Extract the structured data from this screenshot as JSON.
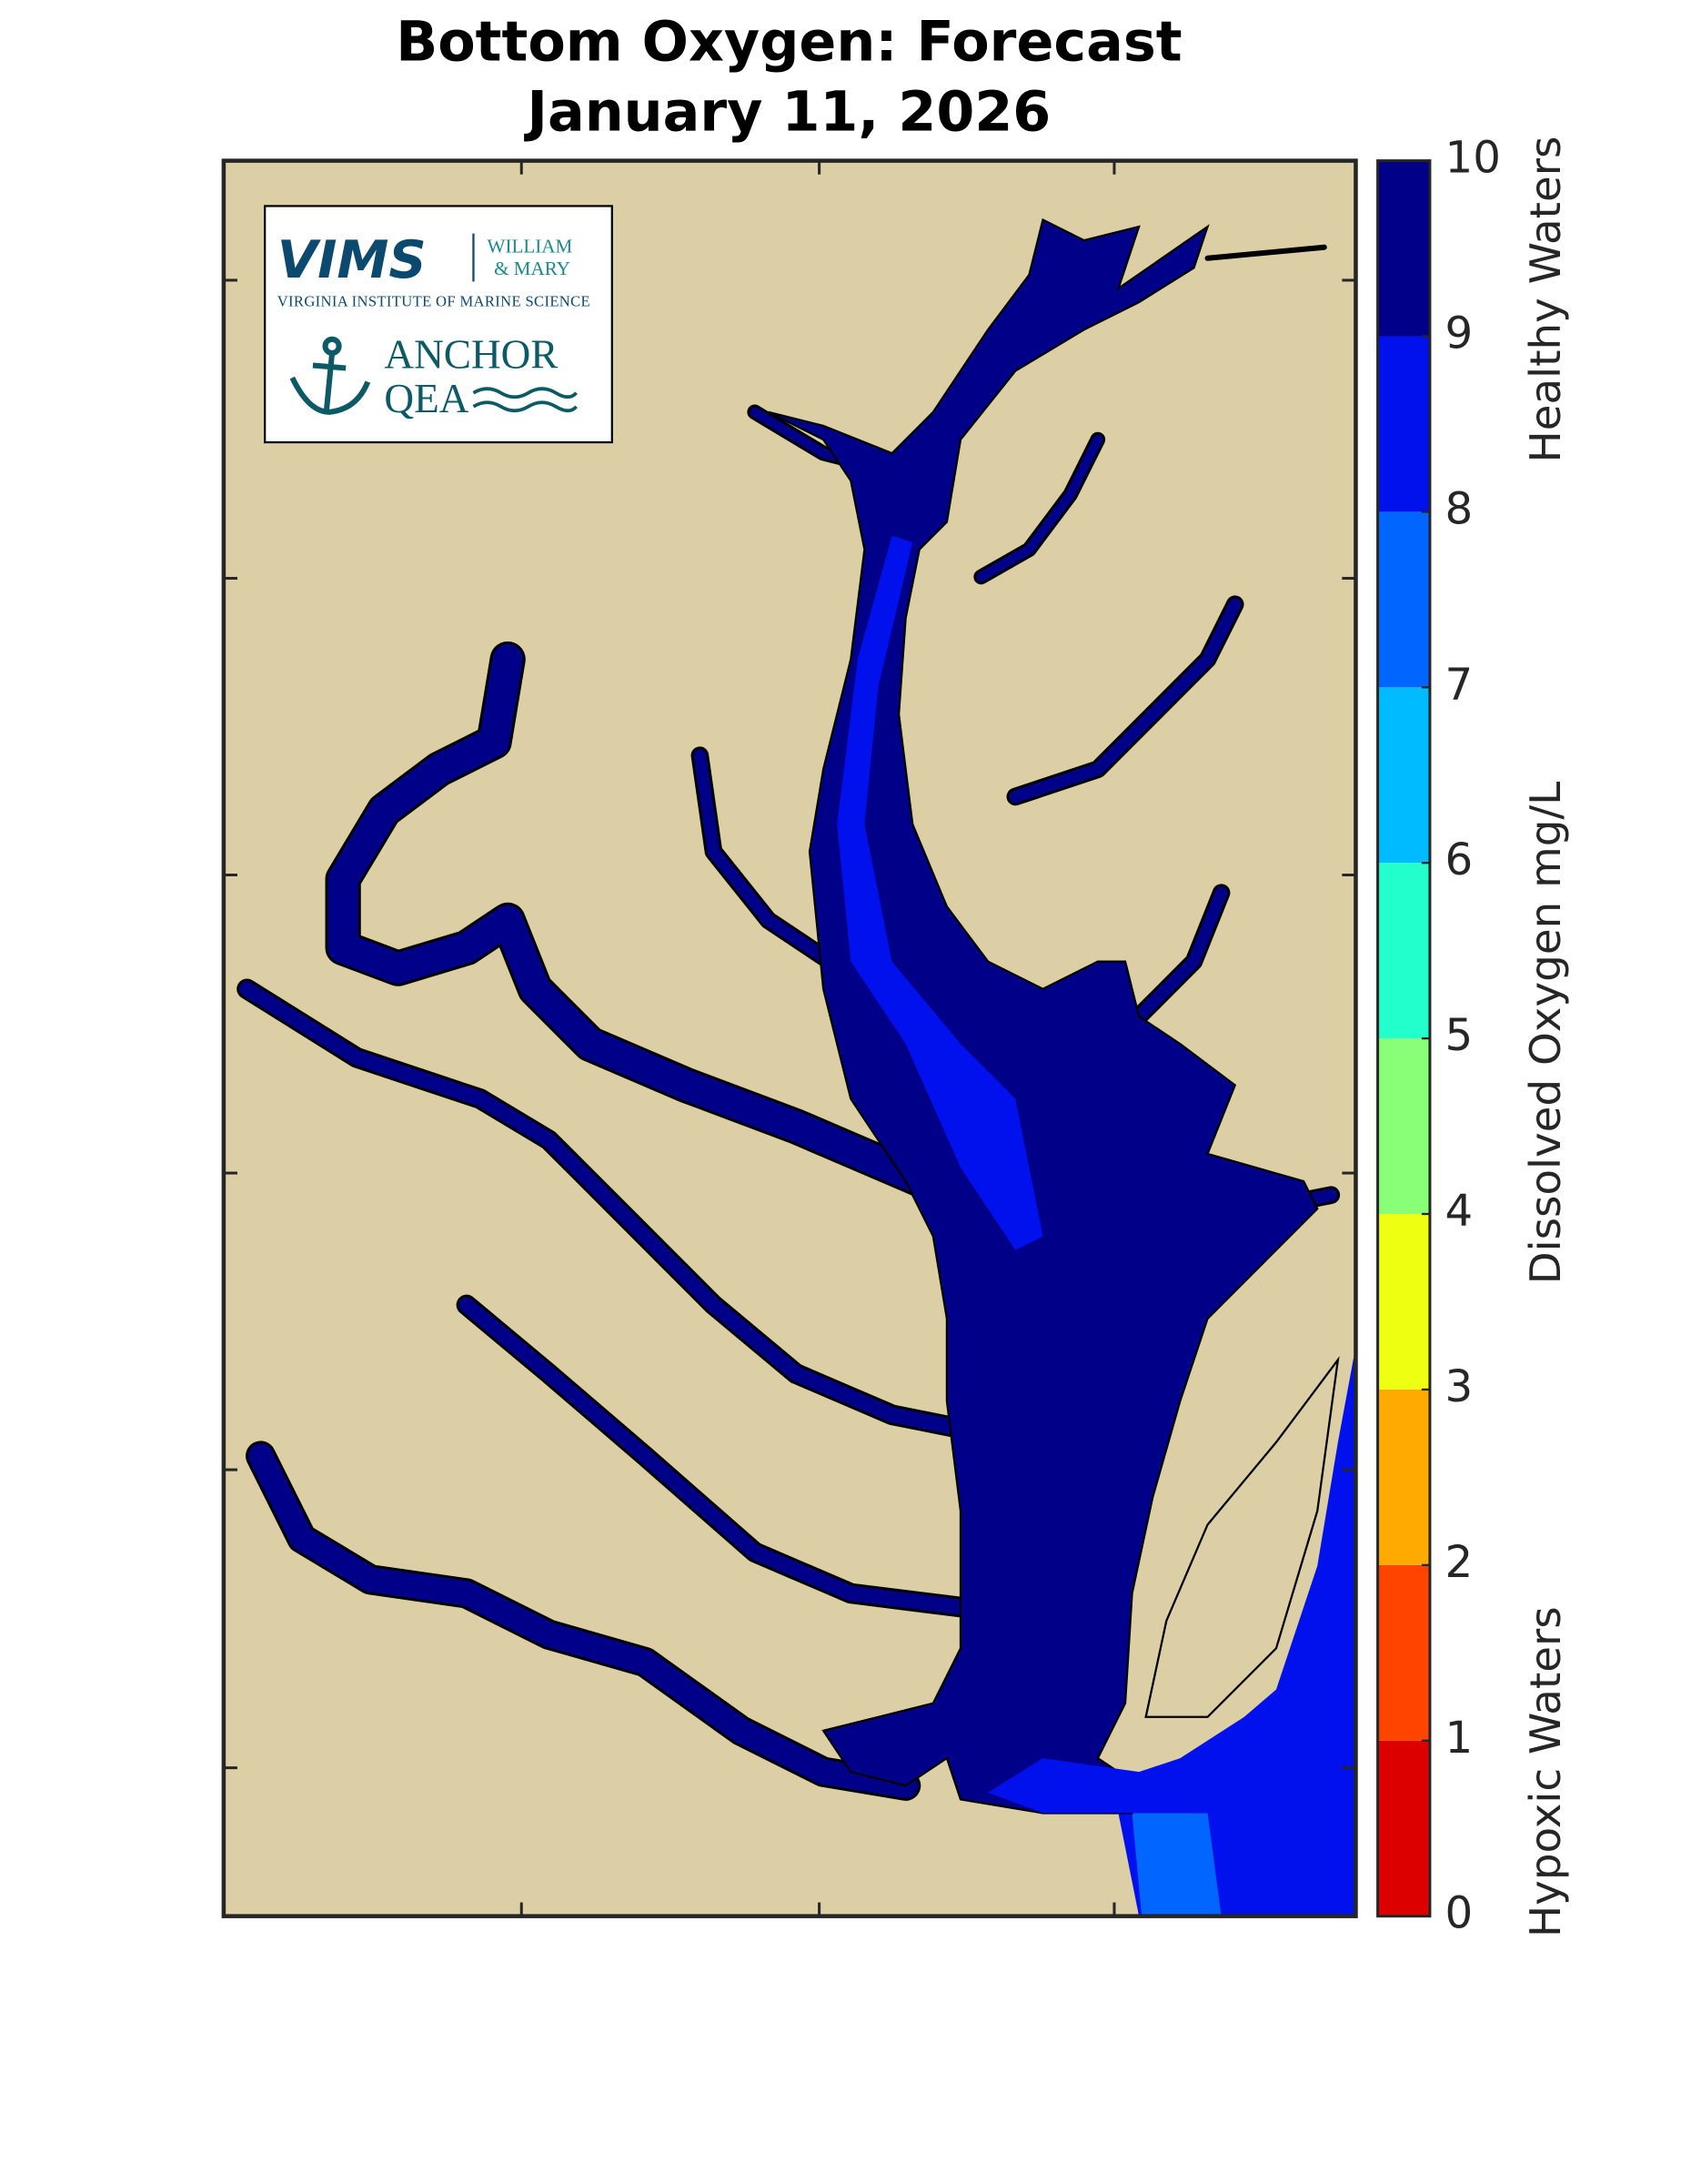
{
  "header": {
    "title_lines": [
      "Bottom Oxygen: Forecast",
      "January 11, 2026"
    ]
  },
  "logo": {
    "vims": "VIMS",
    "william": "WILLIAM",
    "mary": "& MARY",
    "institute": "VIRGINIA INSTITUTE OF MARINE SCIENCE",
    "anchor": "ANCHOR",
    "qea": "QEA"
  },
  "colorbar": {
    "label": "Dissolved Oxygen mg/L",
    "top_label": "Healthy Waters",
    "bottom_label": "Hypoxic Waters",
    "lim": [
      0,
      10
    ],
    "ticks": [
      0,
      1,
      2,
      3,
      4,
      5,
      6,
      7,
      8,
      9,
      10
    ],
    "colors": [
      "#dd0000",
      "#ff4400",
      "#ffaa00",
      "#eeff11",
      "#88ff77",
      "#22ffcc",
      "#00bbff",
      "#0066ff",
      "#0011ee",
      "#000088"
    ]
  }
}
